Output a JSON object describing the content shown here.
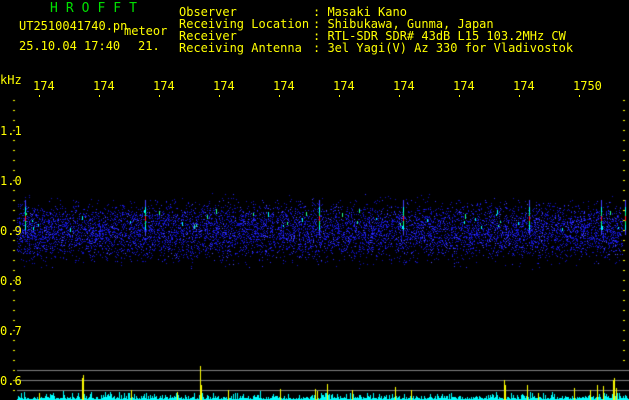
{
  "header": {
    "app_title": "HROFFT",
    "filename": "UT2510041740.pn",
    "mode_label": "meteor",
    "datetime": "25.10.04 17:40",
    "count": "21.",
    "info": [
      {
        "label": "Observer",
        "value": ": Masaki Kano"
      },
      {
        "label": "Receiving Location",
        "value": ": Shibukawa, Gunma, Japan"
      },
      {
        "label": "Receiver",
        "value": ": RTL-SDR SDR# 43dB L15 103.2MHz CW"
      },
      {
        "label": "Receiving Antenna",
        "value": ": 3el Yagi(V) Az 330 for Vladivostok"
      }
    ]
  },
  "chart_data": {
    "type": "heatmap",
    "ylabel": "kHz",
    "x_ticks": [
      "1741",
      "1742",
      "1743",
      "1744",
      "1745",
      "1746",
      "1747",
      "1748",
      "1749",
      "1750"
    ],
    "y_ticks": [
      "1.1",
      "1.0",
      "0.9",
      "0.8",
      "0.7",
      "0.6"
    ],
    "ylim": [
      0.55,
      1.2
    ],
    "noise_band_khz": [
      0.82,
      0.98
    ],
    "echo_minutes": [
      1740.8,
      1742.8,
      1745.7,
      1747.1,
      1749.2,
      1750.4,
      1750.8
    ],
    "colors": {
      "background": "#000000",
      "noise": "#1a1aff",
      "echo_strong": "#ff2020",
      "echo_mid": "#00ffff",
      "level": "#00ffff",
      "peak": "#ffff00",
      "gridline": "#808080"
    }
  }
}
